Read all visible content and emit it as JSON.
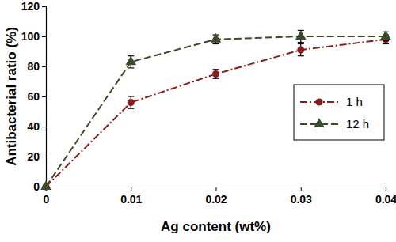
{
  "chart_data": {
    "type": "line",
    "x_label": "Ag content (wt%)",
    "y_label": "Antibacterial ratio (%)",
    "x": [
      0,
      0.01,
      0.02,
      0.03,
      0.04
    ],
    "series": [
      {
        "name": "1 h",
        "color": "#8b1c1c",
        "marker": "circle",
        "line_style": "dash-dot",
        "values": [
          0,
          56,
          75,
          91,
          98
        ],
        "errors": [
          0,
          4,
          3,
          4,
          3
        ]
      },
      {
        "name": "12 h",
        "color": "#3b4a28",
        "marker": "triangle",
        "line_style": "dashed",
        "values": [
          0,
          83,
          98,
          100,
          100
        ],
        "errors": [
          0,
          4,
          3,
          4,
          3
        ]
      }
    ],
    "xlim": [
      0,
      0.04
    ],
    "xticks": [
      0,
      0.01,
      0.02,
      0.03,
      0.04
    ],
    "ylim": [
      0,
      120
    ],
    "yticks": [
      0,
      20,
      40,
      60,
      80,
      100,
      120
    ],
    "grid": false,
    "legend": "right"
  }
}
